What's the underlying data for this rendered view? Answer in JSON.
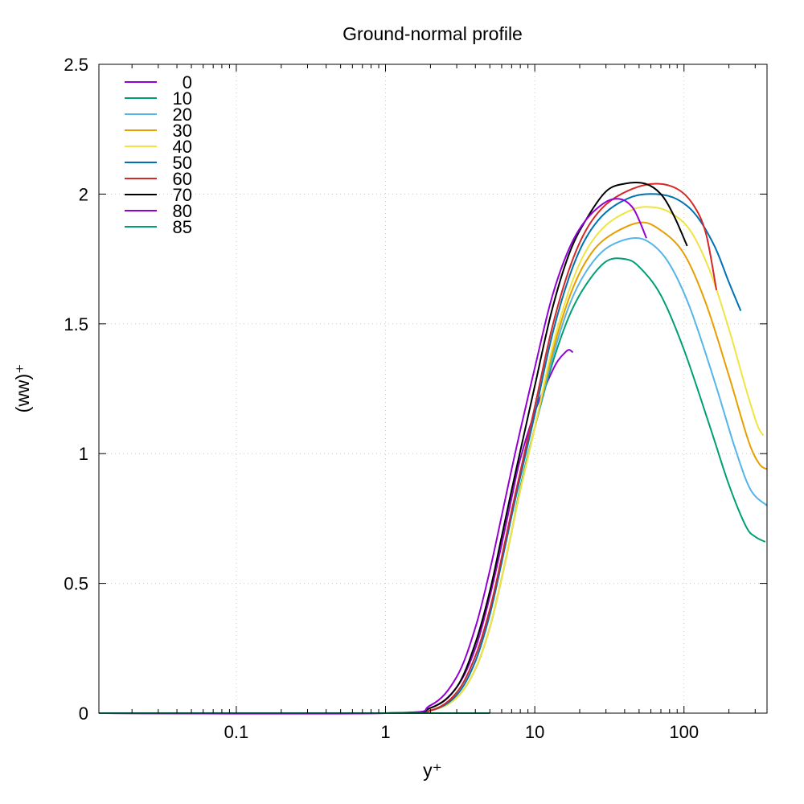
{
  "chart_data": {
    "type": "line",
    "title": "Ground-normal profile",
    "xlabel": "y⁺",
    "ylabel": "(ww)⁺",
    "xscale": "log",
    "xlim": [
      0.012,
      360
    ],
    "ylim": [
      0,
      2.5
    ],
    "grid": true,
    "legend_position": "top-left",
    "x_ticks": [
      {
        "value": 0.1,
        "label": "0.1"
      },
      {
        "value": 1,
        "label": "1"
      },
      {
        "value": 10,
        "label": "10"
      },
      {
        "value": 100,
        "label": "100"
      }
    ],
    "y_ticks": [
      {
        "value": 0,
        "label": "0"
      },
      {
        "value": 0.5,
        "label": "0.5"
      },
      {
        "value": 1,
        "label": "1"
      },
      {
        "value": 1.5,
        "label": "1.5"
      },
      {
        "value": 2,
        "label": "2"
      },
      {
        "value": 2.5,
        "label": "2.5"
      }
    ],
    "series": [
      {
        "name": "0",
        "color": "#9400d3",
        "points": [
          [
            0.012,
            0
          ],
          [
            1,
            0
          ],
          [
            2,
            0.02
          ],
          [
            3,
            0.1
          ],
          [
            4,
            0.25
          ],
          [
            5,
            0.45
          ],
          [
            6,
            0.65
          ],
          [
            7,
            0.83
          ],
          [
            8,
            0.98
          ],
          [
            10,
            1.16
          ],
          [
            12,
            1.27
          ],
          [
            14,
            1.35
          ],
          [
            16,
            1.39
          ],
          [
            17,
            1.4
          ],
          [
            18,
            1.39
          ]
        ]
      },
      {
        "name": "10",
        "color": "#009e73",
        "points": [
          [
            0.012,
            0
          ],
          [
            1,
            0
          ],
          [
            2,
            0.01
          ],
          [
            3,
            0.06
          ],
          [
            4,
            0.17
          ],
          [
            5,
            0.33
          ],
          [
            6,
            0.52
          ],
          [
            7,
            0.7
          ],
          [
            8,
            0.87
          ],
          [
            10,
            1.1
          ],
          [
            13,
            1.34
          ],
          [
            17,
            1.53
          ],
          [
            22,
            1.65
          ],
          [
            30,
            1.74
          ],
          [
            40,
            1.75
          ],
          [
            50,
            1.72
          ],
          [
            70,
            1.61
          ],
          [
            100,
            1.4
          ],
          [
            150,
            1.1
          ],
          [
            200,
            0.88
          ],
          [
            260,
            0.72
          ],
          [
            300,
            0.68
          ],
          [
            350,
            0.66
          ]
        ]
      },
      {
        "name": "20",
        "color": "#56b4e9",
        "points": [
          [
            0.012,
            0
          ],
          [
            1,
            0
          ],
          [
            2,
            0.01
          ],
          [
            3,
            0.06
          ],
          [
            4,
            0.17
          ],
          [
            5,
            0.33
          ],
          [
            6,
            0.52
          ],
          [
            7,
            0.7
          ],
          [
            8,
            0.86
          ],
          [
            10,
            1.1
          ],
          [
            13,
            1.36
          ],
          [
            17,
            1.57
          ],
          [
            22,
            1.7
          ],
          [
            30,
            1.79
          ],
          [
            45,
            1.83
          ],
          [
            60,
            1.81
          ],
          [
            80,
            1.73
          ],
          [
            110,
            1.56
          ],
          [
            160,
            1.28
          ],
          [
            220,
            1.02
          ],
          [
            280,
            0.86
          ],
          [
            360,
            0.8
          ]
        ]
      },
      {
        "name": "30",
        "color": "#e69f00",
        "points": [
          [
            0.012,
            0
          ],
          [
            1,
            0
          ],
          [
            2,
            0.01
          ],
          [
            3,
            0.06
          ],
          [
            4,
            0.17
          ],
          [
            5,
            0.33
          ],
          [
            6,
            0.52
          ],
          [
            7,
            0.7
          ],
          [
            8,
            0.86
          ],
          [
            10,
            1.1
          ],
          [
            13,
            1.38
          ],
          [
            17,
            1.6
          ],
          [
            22,
            1.74
          ],
          [
            30,
            1.83
          ],
          [
            50,
            1.89
          ],
          [
            70,
            1.86
          ],
          [
            100,
            1.77
          ],
          [
            140,
            1.58
          ],
          [
            200,
            1.3
          ],
          [
            270,
            1.05
          ],
          [
            320,
            0.96
          ],
          [
            360,
            0.94
          ]
        ]
      },
      {
        "name": "40",
        "color": "#f0e442",
        "points": [
          [
            0.012,
            0
          ],
          [
            1,
            0
          ],
          [
            2,
            0.01
          ],
          [
            3,
            0.06
          ],
          [
            4,
            0.17
          ],
          [
            5,
            0.33
          ],
          [
            6,
            0.52
          ],
          [
            7,
            0.7
          ],
          [
            8,
            0.86
          ],
          [
            10,
            1.1
          ],
          [
            13,
            1.4
          ],
          [
            17,
            1.63
          ],
          [
            22,
            1.78
          ],
          [
            30,
            1.88
          ],
          [
            45,
            1.94
          ],
          [
            60,
            1.95
          ],
          [
            80,
            1.93
          ],
          [
            110,
            1.86
          ],
          [
            150,
            1.7
          ],
          [
            200,
            1.48
          ],
          [
            260,
            1.25
          ],
          [
            310,
            1.11
          ],
          [
            340,
            1.07
          ]
        ]
      },
      {
        "name": "50",
        "color": "#0072b2",
        "points": [
          [
            0.012,
            0
          ],
          [
            1,
            0
          ],
          [
            2,
            0.01
          ],
          [
            3,
            0.07
          ],
          [
            4,
            0.2
          ],
          [
            5,
            0.38
          ],
          [
            6,
            0.58
          ],
          [
            7,
            0.76
          ],
          [
            8,
            0.91
          ],
          [
            10,
            1.15
          ],
          [
            13,
            1.45
          ],
          [
            17,
            1.68
          ],
          [
            22,
            1.83
          ],
          [
            30,
            1.93
          ],
          [
            45,
            1.99
          ],
          [
            65,
            2.0
          ],
          [
            90,
            1.98
          ],
          [
            120,
            1.92
          ],
          [
            160,
            1.8
          ],
          [
            200,
            1.66
          ],
          [
            240,
            1.55
          ]
        ]
      },
      {
        "name": "60",
        "color": "#d62728",
        "points": [
          [
            0.012,
            0
          ],
          [
            1,
            0
          ],
          [
            2,
            0.01
          ],
          [
            3,
            0.08
          ],
          [
            4,
            0.22
          ],
          [
            5,
            0.4
          ],
          [
            6,
            0.6
          ],
          [
            7,
            0.78
          ],
          [
            8,
            0.93
          ],
          [
            10,
            1.18
          ],
          [
            13,
            1.48
          ],
          [
            17,
            1.71
          ],
          [
            22,
            1.86
          ],
          [
            30,
            1.96
          ],
          [
            45,
            2.02
          ],
          [
            65,
            2.04
          ],
          [
            90,
            2.02
          ],
          [
            115,
            1.96
          ],
          [
            140,
            1.85
          ],
          [
            165,
            1.63
          ]
        ]
      },
      {
        "name": "70",
        "color": "#000000",
        "points": [
          [
            0.012,
            0
          ],
          [
            1,
            0
          ],
          [
            2,
            0.02
          ],
          [
            3,
            0.1
          ],
          [
            4,
            0.27
          ],
          [
            5,
            0.47
          ],
          [
            6,
            0.68
          ],
          [
            7,
            0.86
          ],
          [
            8,
            1.01
          ],
          [
            10,
            1.26
          ],
          [
            13,
            1.55
          ],
          [
            17,
            1.77
          ],
          [
            22,
            1.9
          ],
          [
            30,
            2.01
          ],
          [
            40,
            2.04
          ],
          [
            55,
            2.04
          ],
          [
            70,
            2.0
          ],
          [
            85,
            1.92
          ],
          [
            105,
            1.8
          ]
        ]
      },
      {
        "name": "80",
        "color": "#9400d3",
        "points": [
          [
            0.012,
            0
          ],
          [
            1,
            0
          ],
          [
            2,
            0.03
          ],
          [
            3,
            0.14
          ],
          [
            4,
            0.33
          ],
          [
            5,
            0.55
          ],
          [
            6,
            0.76
          ],
          [
            7,
            0.94
          ],
          [
            8,
            1.09
          ],
          [
            10,
            1.33
          ],
          [
            13,
            1.6
          ],
          [
            17,
            1.79
          ],
          [
            22,
            1.9
          ],
          [
            30,
            1.97
          ],
          [
            38,
            1.98
          ],
          [
            45,
            1.95
          ],
          [
            50,
            1.9
          ],
          [
            56,
            1.83
          ]
        ]
      },
      {
        "name": "85",
        "color": "#009e73",
        "points": [
          [
            0.012,
            0
          ],
          [
            5,
            0
          ]
        ]
      }
    ]
  }
}
